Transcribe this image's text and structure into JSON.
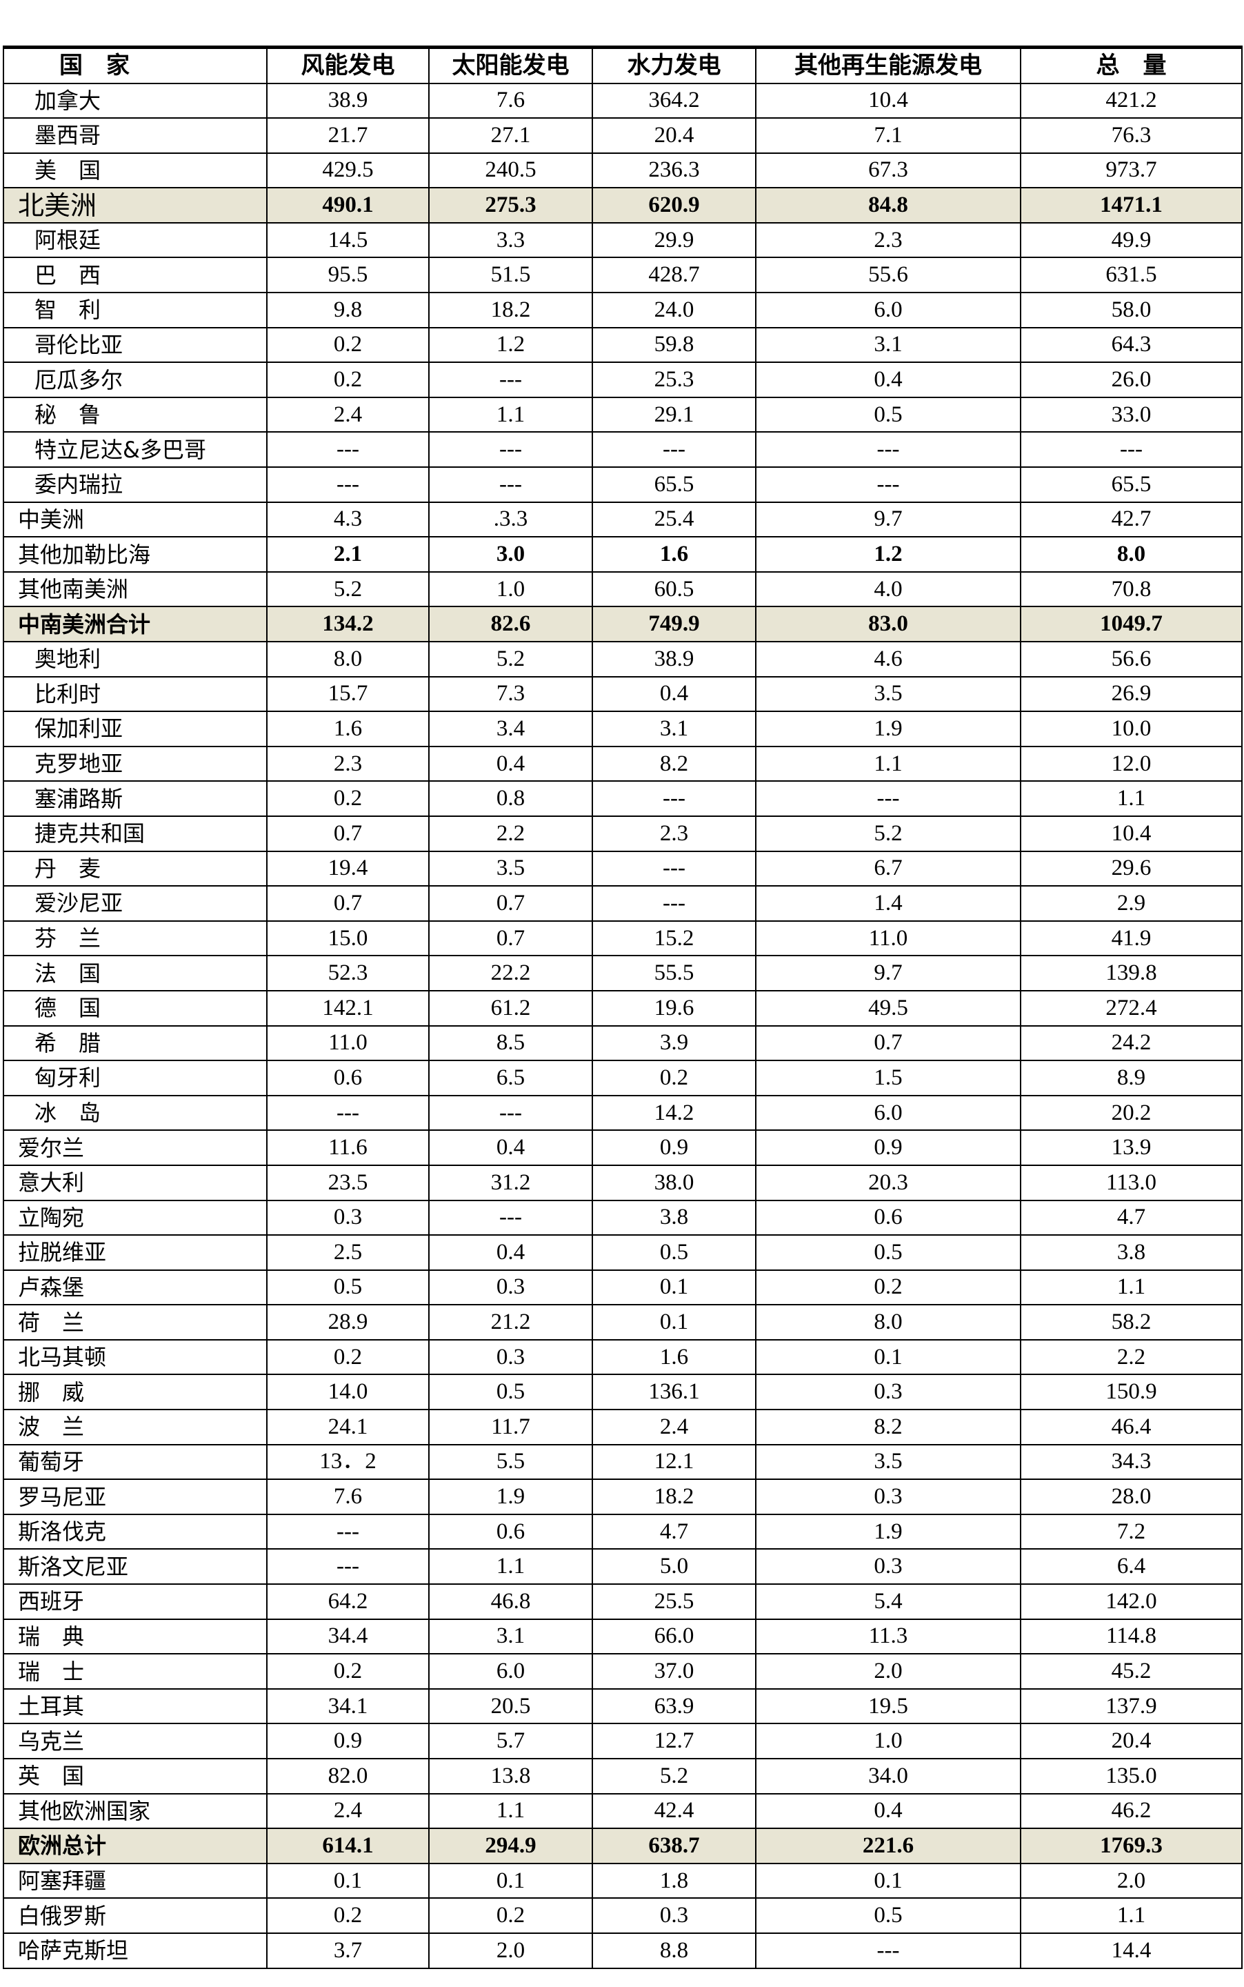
{
  "table": {
    "header": [
      "国　家",
      "风能发电",
      "太阳能发电",
      "水力发电",
      "其他再生能源发电",
      "总　量"
    ],
    "rows": [
      [
        "加拿大",
        "38.9",
        "7.6",
        "364.2",
        "10.4",
        "421.2"
      ],
      [
        "墨西哥",
        "21.7",
        "27.1",
        "20.4",
        "7.1",
        "76.3"
      ],
      [
        "美　国",
        "429.5",
        "240.5",
        "236.3",
        "67.3",
        "973.7"
      ],
      [
        "北美洲",
        "490.1",
        "275.3",
        "620.9",
        "84.8",
        "1471.1"
      ],
      [
        "阿根廷",
        "14.5",
        "3.3",
        "29.9",
        "2.3",
        "49.9"
      ],
      [
        "巴　西",
        "95.5",
        "51.5",
        "428.7",
        "55.6",
        "631.5"
      ],
      [
        "智　利",
        "9.8",
        "18.2",
        "24.0",
        "6.0",
        "58.0"
      ],
      [
        "哥伦比亚",
        "0.2",
        "1.2",
        "59.8",
        "3.1",
        "64.3"
      ],
      [
        "厄瓜多尔",
        "0.2",
        "---",
        "25.3",
        "0.4",
        "26.0"
      ],
      [
        "秘　鲁",
        "2.4",
        "1.1",
        "29.1",
        "0.5",
        "33.0"
      ],
      [
        "特立尼达&多巴哥",
        "---",
        "---",
        "---",
        "---",
        "---"
      ],
      [
        "委内瑞拉",
        "---",
        "---",
        "65.5",
        "---",
        "65.5"
      ],
      [
        "中美洲",
        "4.3",
        ".3.3",
        "25.4",
        "9.7",
        "42.7"
      ],
      [
        "其他加勒比海",
        "2.1",
        "3.0",
        "1.6",
        "1.2",
        "8.0"
      ],
      [
        "其他南美洲",
        "5.2",
        "1.0",
        "60.5",
        "4.0",
        "70.8"
      ],
      [
        "中南美洲合计",
        "134.2",
        "82.6",
        "749.9",
        "83.0",
        "1049.7"
      ],
      [
        "奥地利",
        "8.0",
        "5.2",
        "38.9",
        "4.6",
        "56.6"
      ],
      [
        "比利时",
        "15.7",
        "7.3",
        "0.4",
        "3.5",
        "26.9"
      ],
      [
        "保加利亚",
        "1.6",
        "3.4",
        "3.1",
        "1.9",
        "10.0"
      ],
      [
        "克罗地亚",
        "2.3",
        "0.4",
        "8.2",
        "1.1",
        "12.0"
      ],
      [
        "塞浦路斯",
        "0.2",
        "0.8",
        "---",
        "---",
        "1.1"
      ],
      [
        "捷克共和国",
        "0.7",
        "2.2",
        "2.3",
        "5.2",
        "10.4"
      ],
      [
        "丹　麦",
        "19.4",
        "3.5",
        "---",
        "6.7",
        "29.6"
      ],
      [
        "爱沙尼亚",
        "0.7",
        "0.7",
        "---",
        "1.4",
        "2.9"
      ],
      [
        "芬　兰",
        "15.0",
        "0.7",
        "15.2",
        "11.0",
        "41.9"
      ],
      [
        "法　国",
        "52.3",
        "22.2",
        "55.5",
        "9.7",
        "139.8"
      ],
      [
        "德　国",
        "142.1",
        "61.2",
        "19.6",
        "49.5",
        "272.4"
      ],
      [
        "希　腊",
        "11.0",
        "8.5",
        "3.9",
        "0.7",
        "24.2"
      ],
      [
        "匈牙利",
        "0.6",
        "6.5",
        "0.2",
        "1.5",
        "8.9"
      ],
      [
        "冰　岛",
        "---",
        "---",
        "14.2",
        "6.0",
        "20.2"
      ],
      [
        "爱尔兰",
        "11.6",
        "0.4",
        "0.9",
        "0.9",
        "13.9"
      ],
      [
        "意大利",
        "23.5",
        "31.2",
        "38.0",
        "20.3",
        "113.0"
      ],
      [
        "立陶宛",
        "0.3",
        "---",
        "3.8",
        "0.6",
        "4.7"
      ],
      [
        "拉脱维亚",
        "2.5",
        "0.4",
        "0.5",
        "0.5",
        "3.8"
      ],
      [
        "卢森堡",
        "0.5",
        "0.3",
        "0.1",
        "0.2",
        "1.1"
      ],
      [
        "荷　兰",
        "28.9",
        "21.2",
        "0.1",
        "8.0",
        "58.2"
      ],
      [
        "北马其顿",
        "0.2",
        "0.3",
        "1.6",
        "0.1",
        "2.2"
      ],
      [
        "挪　威",
        "14.0",
        "0.5",
        "136.1",
        "0.3",
        "150.9"
      ],
      [
        "波　兰",
        "24.1",
        "11.7",
        "2.4",
        "8.2",
        "46.4"
      ],
      [
        "葡萄牙",
        "13．2",
        "5.5",
        "12.1",
        "3.5",
        "34.3"
      ],
      [
        "罗马尼亚",
        "7.6",
        "1.9",
        "18.2",
        "0.3",
        "28.0"
      ],
      [
        "斯洛伐克",
        "---",
        "0.6",
        "4.7",
        "1.9",
        "7.2"
      ],
      [
        "斯洛文尼亚",
        "---",
        "1.1",
        "5.0",
        "0.3",
        "6.4"
      ],
      [
        "西班牙",
        "64.2",
        "46.8",
        "25.5",
        "5.4",
        "142.0"
      ],
      [
        "瑞　典",
        "34.4",
        "3.1",
        "66.0",
        "11.3",
        "114.8"
      ],
      [
        "瑞　士",
        "0.2",
        "6.0",
        "37.0",
        "2.0",
        "45.2"
      ],
      [
        "土耳其",
        "34.1",
        "20.5",
        "63.9",
        "19.5",
        "137.9"
      ],
      [
        "乌克兰",
        "0.9",
        "5.7",
        "12.7",
        "1.0",
        "20.4"
      ],
      [
        "英　国",
        "82.0",
        "13.8",
        "5.2",
        "34.0",
        "135.0"
      ],
      [
        "其他欧洲国家",
        "2.4",
        "1.1",
        "42.4",
        "0.4",
        "46.2"
      ],
      [
        "欧洲总计",
        "614.1",
        "294.9",
        "638.7",
        "221.6",
        "1769.3"
      ],
      [
        "阿塞拜疆",
        "0.1",
        "0.1",
        "1.8",
        "0.1",
        "2.0"
      ],
      [
        "白俄罗斯",
        "0.2",
        "0.2",
        "0.3",
        "0.5",
        "1.1"
      ],
      [
        "哈萨克斯坦",
        "3.7",
        "2.0",
        "8.8",
        "---",
        "14.4"
      ]
    ]
  }
}
